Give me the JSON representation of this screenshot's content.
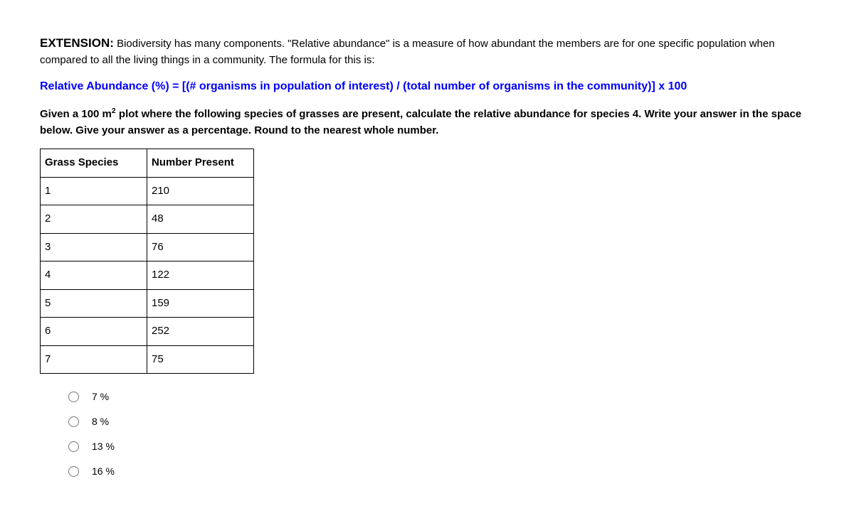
{
  "intro": {
    "extension_label": "EXTENSION:",
    "text_after": " Biodiversity has many components.  \"Relative abundance\" is a measure of how abundant the members are for one specific population when compared to all the living things in a community.  The formula for this is:"
  },
  "formula": "Relative Abundance (%) = [(# organisms in population of interest) / (total number of organisms in the community)] x 100",
  "instructions": {
    "prefix": "Given a 100 m",
    "sup": "2",
    "suffix": " plot where the following species of grasses are present, calculate the relative abundance for species 4.  Write your answer in the space below.  Give your answer as a percentage.  Round to the nearest whole number."
  },
  "table": {
    "headers": {
      "species": "Grass Species",
      "number": "Number Present"
    },
    "rows": [
      {
        "species": "1",
        "number": "210"
      },
      {
        "species": "2",
        "number": "48"
      },
      {
        "species": "3",
        "number": "76"
      },
      {
        "species": "4",
        "number": "122"
      },
      {
        "species": "5",
        "number": "159"
      },
      {
        "species": "6",
        "number": "252"
      },
      {
        "species": "7",
        "number": "75"
      }
    ]
  },
  "options": [
    {
      "label": "7 %"
    },
    {
      "label": "8 %"
    },
    {
      "label": "13 %"
    },
    {
      "label": "16 %"
    }
  ]
}
